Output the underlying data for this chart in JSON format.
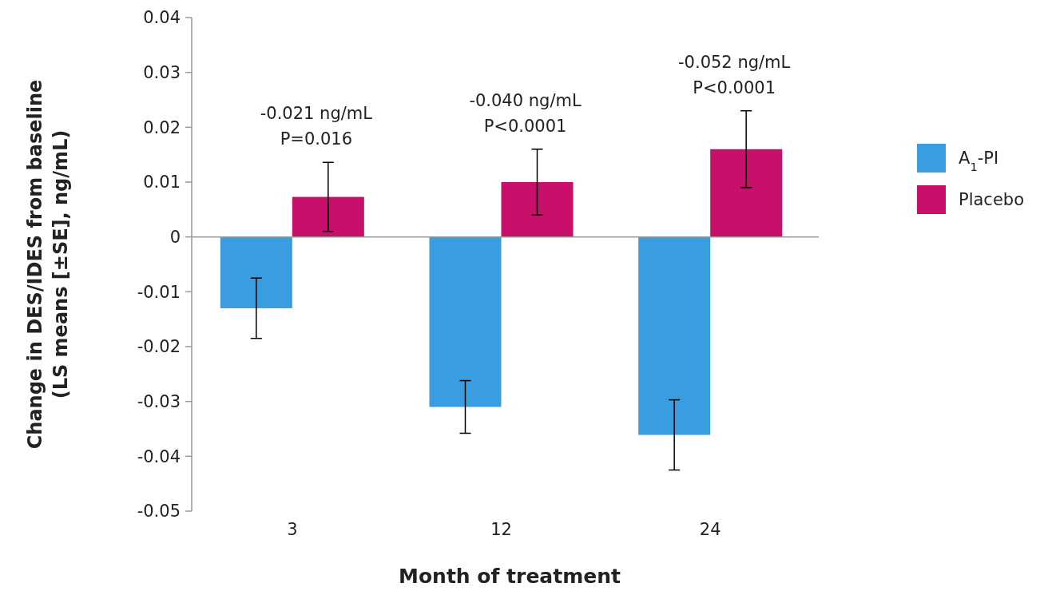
{
  "chart_data": {
    "type": "bar",
    "xlabel": "Month of treatment",
    "ylabel": "Change in DES/IDES from baseline\n(LS means [±SE], ng/mL)",
    "categories": [
      "3",
      "12",
      "24"
    ],
    "series": [
      {
        "name": "A$_{1}$-PI",
        "color": "#3a9de0",
        "values": [
          -0.013,
          -0.031,
          -0.0361
        ],
        "errors": [
          0.0055,
          0.0048,
          0.0064
        ]
      },
      {
        "name": "Placebo",
        "color": "#c80f6a",
        "values": [
          0.0073,
          0.01,
          0.016
        ],
        "errors": [
          0.0063,
          0.006,
          0.007
        ]
      }
    ],
    "ylim": [
      -0.05,
      0.04
    ],
    "yticks": [
      -0.05,
      -0.04,
      -0.03,
      -0.02,
      -0.01,
      0,
      0.01,
      0.02,
      0.03,
      0.04
    ],
    "legend": "right",
    "annotations": [
      "-0.021 ng/mL\nP=0.016",
      "-0.040 ng/mL\nP<0.0001",
      "-0.052 ng/mL\nP<0.0001"
    ]
  }
}
